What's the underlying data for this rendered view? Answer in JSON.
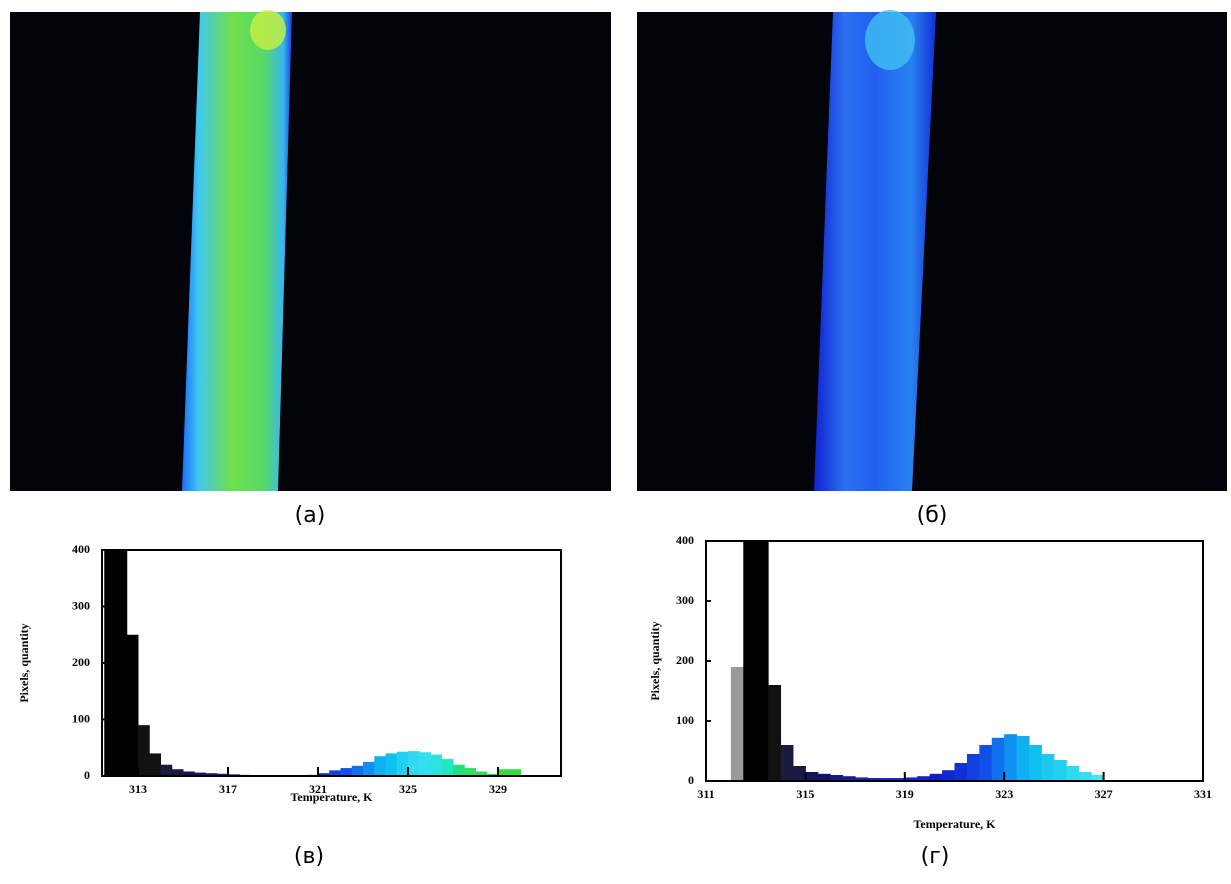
{
  "figure": {
    "captions": [
      "(а)",
      "(б)",
      "(в)",
      "(г)"
    ]
  },
  "chart_data": [
    {
      "type": "histogram",
      "xlabel": "Temperature, K",
      "ylabel": "Pixels, quantity",
      "xlim": [
        311.4,
        331.8
      ],
      "ylim": [
        0,
        400
      ],
      "xticks": [
        313,
        317,
        321,
        325,
        329
      ],
      "yticks": [
        0,
        100,
        200,
        300,
        400
      ],
      "bins": [
        311.5,
        312,
        312.5,
        313,
        313.5,
        314,
        314.5,
        315,
        315.5,
        316,
        316.5,
        317,
        317.5,
        318,
        318.5,
        319,
        319.5,
        320,
        320.5,
        321,
        321.5,
        322,
        322.5,
        323,
        323.5,
        324,
        324.5,
        325,
        325.5,
        326,
        326.5,
        327,
        327.5,
        328,
        328.5,
        329,
        329.5,
        330
      ],
      "values": [
        400,
        400,
        250,
        90,
        40,
        20,
        12,
        8,
        6,
        5,
        4,
        3,
        2,
        1,
        1,
        0,
        0,
        1,
        2,
        5,
        10,
        14,
        18,
        25,
        35,
        40,
        43,
        44,
        42,
        38,
        30,
        20,
        14,
        8,
        4,
        12,
        12
      ],
      "colors": [
        "#000000",
        "#000000",
        "#000000",
        "#111111",
        "#111111",
        "#1a1a3a",
        "#1a1a4a",
        "#14145a",
        "#14146a",
        "#1a1a80",
        "#1a1a90",
        "#2020a0",
        "#3030b0",
        "#4040c0",
        "#5050d0",
        "#5050d0",
        "#5050d0",
        "#2030c0",
        "#1020c0",
        "#1030d0",
        "#1040e0",
        "#1050f0",
        "#1070f0",
        "#1090f0",
        "#10b0f0",
        "#10c0f0",
        "#20d0f0",
        "#30d8f0",
        "#30e0f0",
        "#30e0e0",
        "#20e8c0",
        "#20e080",
        "#30e060",
        "#30e050",
        "#30e050",
        "#30e040",
        "#30e040"
      ]
    },
    {
      "type": "histogram",
      "xlabel": "Temperature, K",
      "ylabel": "Pixels, quantity",
      "xlim": [
        311,
        331
      ],
      "ylim": [
        0,
        400
      ],
      "xticks": [
        311,
        315,
        319,
        323,
        327,
        331
      ],
      "yticks": [
        0,
        100,
        200,
        300,
        400
      ],
      "bins": [
        312,
        312.5,
        313,
        313.5,
        314,
        314.5,
        315,
        315.5,
        316,
        316.5,
        317,
        317.5,
        318,
        318.5,
        319,
        319.5,
        320,
        320.5,
        321,
        321.5,
        322,
        322.5,
        323,
        323.5,
        324,
        324.5,
        325,
        325.5,
        326,
        326.5,
        327
      ],
      "values": [
        190,
        400,
        400,
        160,
        60,
        25,
        15,
        12,
        10,
        8,
        6,
        5,
        5,
        5,
        6,
        8,
        12,
        18,
        30,
        45,
        60,
        72,
        78,
        75,
        60,
        45,
        35,
        25,
        15,
        10
      ],
      "colors": [
        "#9a9a9a",
        "#000000",
        "#000000",
        "#111111",
        "#1a1a3a",
        "#1a1a4a",
        "#14145a",
        "#14146a",
        "#1a1a80",
        "#1a1a90",
        "#2020a0",
        "#2525b0",
        "#2525c0",
        "#2525c8",
        "#2020c8",
        "#1a20c8",
        "#1020c8",
        "#1028d0",
        "#1030d8",
        "#1040e0",
        "#1050e8",
        "#1070f0",
        "#1090f0",
        "#10b0f0",
        "#10c0f0",
        "#20c8f0",
        "#20d0f0",
        "#30d8f0",
        "#30e0f0",
        "#40e8f0"
      ]
    }
  ]
}
